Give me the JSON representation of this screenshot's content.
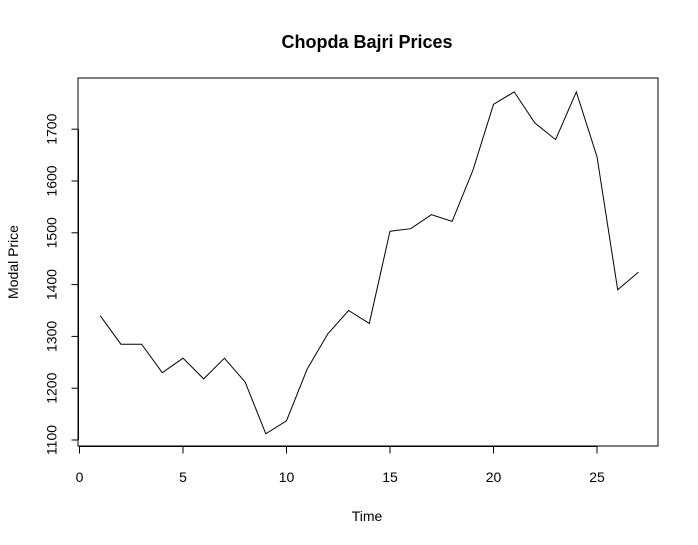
{
  "chart_data": {
    "type": "line",
    "title": "Chopda Bajri Prices",
    "xlabel": "Time",
    "ylabel": "Modal Price",
    "x": [
      1,
      2,
      3,
      4,
      5,
      6,
      7,
      8,
      9,
      10,
      11,
      12,
      13,
      14,
      15,
      16,
      17,
      18,
      19,
      20,
      21,
      22,
      23,
      24,
      25,
      26,
      27
    ],
    "series": [
      {
        "values": [
          1340,
          1285,
          1285,
          1230,
          1258,
          1218,
          1258,
          1212,
          1112,
          1137,
          1237,
          1305,
          1350,
          1325,
          1503,
          1508,
          1535,
          1522,
          1620,
          1748,
          1772,
          1712,
          1680,
          1772,
          1647,
          1390,
          1424
        ]
      }
    ],
    "xlim": [
      0,
      27
    ],
    "ylim": [
      1100,
      1700
    ],
    "xticks": [
      0,
      5,
      10,
      15,
      20,
      25
    ],
    "yticks": [
      1100,
      1200,
      1300,
      1400,
      1500,
      1600,
      1700
    ],
    "grid": false,
    "line_color": "#000000"
  }
}
